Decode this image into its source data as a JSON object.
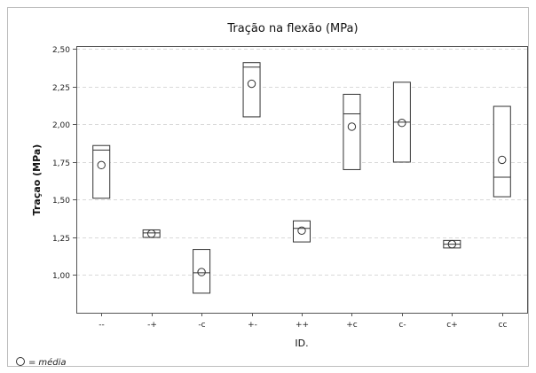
{
  "chart_data": {
    "type": "box",
    "title": "Tração na flexão (MPa)",
    "xlabel": "ID.",
    "ylabel": "Traçao (MPa)",
    "categories": [
      "--",
      "-+",
      "-c",
      "+-",
      "++",
      "+c",
      "c-",
      "c+",
      "cc"
    ],
    "yticks": [
      "1,00",
      "1,25",
      "1,50",
      "1,75",
      "2,00",
      "2,25",
      "2,50"
    ],
    "ytick_values": [
      1.0,
      1.25,
      1.5,
      1.75,
      2.0,
      2.25,
      2.5
    ],
    "ylim": [
      0.75,
      2.52
    ],
    "grid": true,
    "boxes": [
      {
        "category": "--",
        "q1": 1.51,
        "median": 1.83,
        "q3": 1.86,
        "mean": 1.73
      },
      {
        "category": "-+",
        "q1": 1.25,
        "median": 1.28,
        "q3": 1.3,
        "mean": 1.275
      },
      {
        "category": "-c",
        "q1": 0.88,
        "median": 1.015,
        "q3": 1.17,
        "mean": 1.02
      },
      {
        "category": "+-",
        "q1": 2.05,
        "median": 2.38,
        "q3": 2.41,
        "mean": 2.27
      },
      {
        "category": "++",
        "q1": 1.22,
        "median": 1.31,
        "q3": 1.36,
        "mean": 1.295
      },
      {
        "category": "+c",
        "q1": 1.7,
        "median": 2.07,
        "q3": 2.2,
        "mean": 1.985
      },
      {
        "category": "c-",
        "q1": 1.75,
        "median": 2.015,
        "q3": 2.28,
        "mean": 2.01
      },
      {
        "category": "c+",
        "q1": 1.18,
        "median": 1.205,
        "q3": 1.23,
        "mean": 1.205
      },
      {
        "category": "cc",
        "q1": 1.52,
        "median": 1.65,
        "q3": 2.12,
        "mean": 1.765
      }
    ],
    "legend": {
      "symbol": "O",
      "equals": "=",
      "label": "média",
      "position": "bottom-left"
    }
  }
}
